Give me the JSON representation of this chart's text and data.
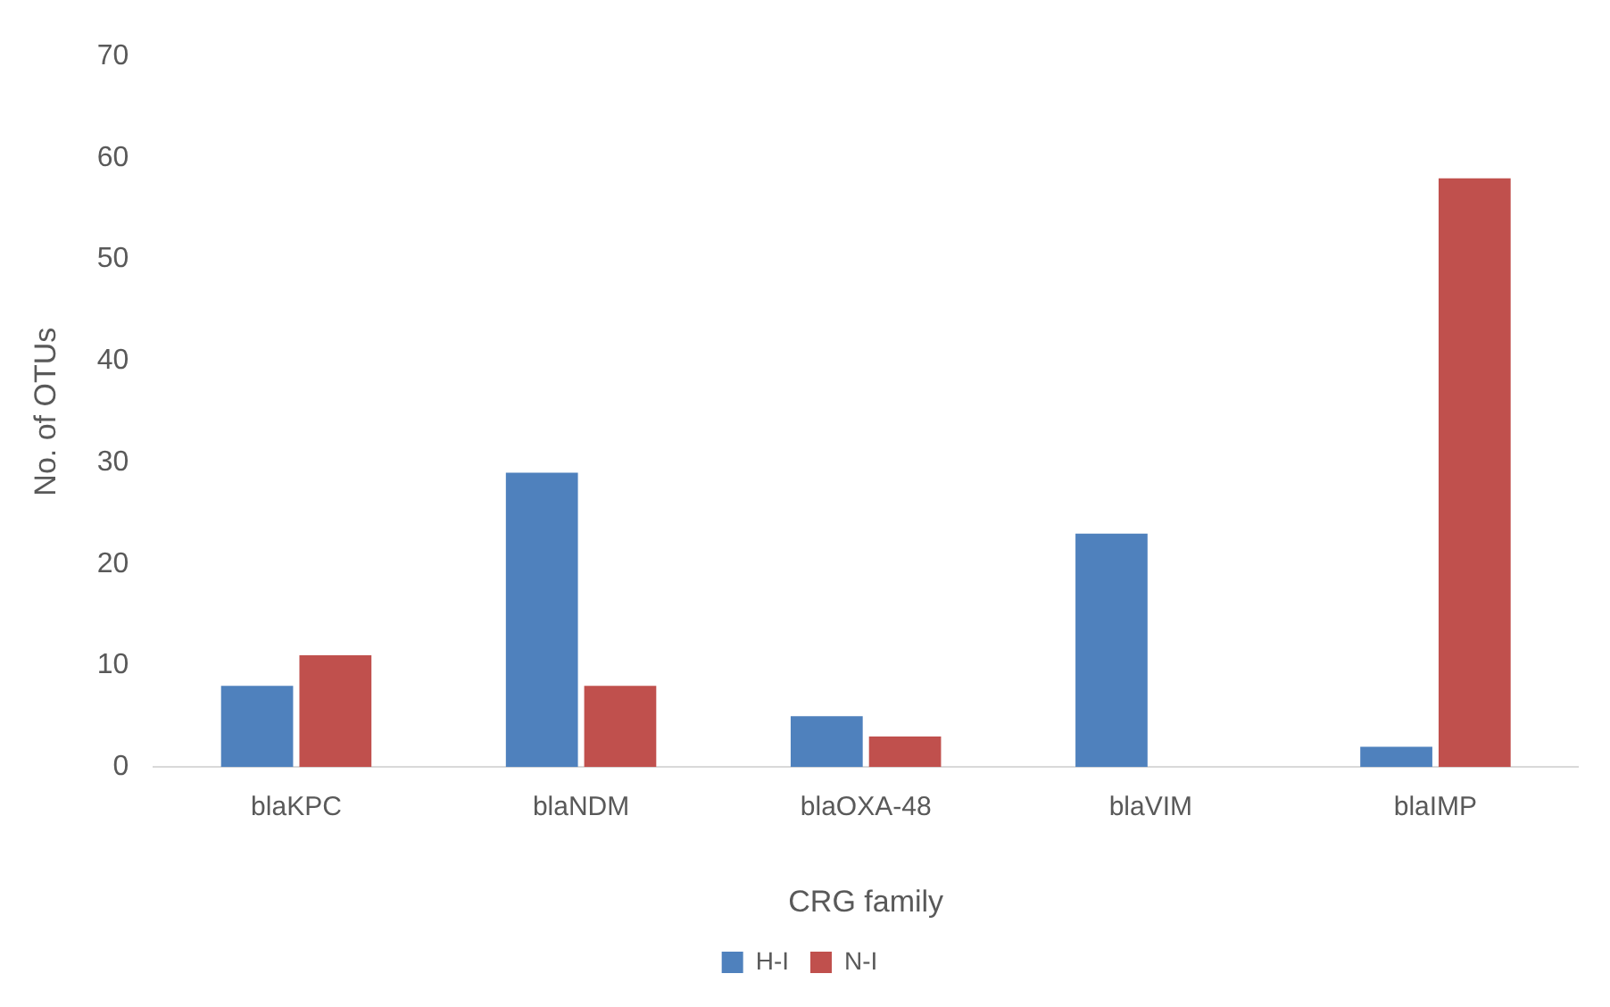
{
  "chart_data": {
    "type": "bar",
    "xlabel": "CRG family",
    "ylabel": "No. of OTUs",
    "categories": [
      "blaKPC",
      "blaNDM",
      "blaOXA-48",
      "blaVIM",
      "blaIMP"
    ],
    "series": [
      {
        "name": "H-I",
        "color": "#4f81bd",
        "values": [
          8,
          29,
          5,
          23,
          2
        ]
      },
      {
        "name": "N-I",
        "color": "#c0504d",
        "values": [
          11,
          8,
          3,
          0,
          58
        ]
      }
    ],
    "ylim": [
      0,
      70
    ],
    "yticks": [
      0,
      10,
      20,
      30,
      40,
      50,
      60,
      70
    ],
    "grid": false,
    "legend": "bottom"
  }
}
